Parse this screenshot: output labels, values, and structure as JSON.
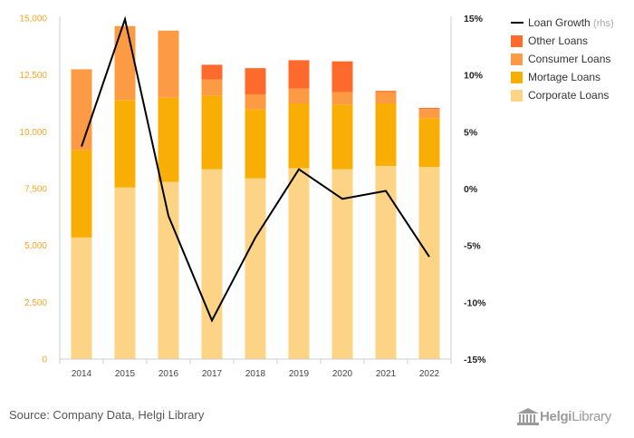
{
  "chart_data": {
    "type": "bar",
    "stacked": true,
    "categories": [
      "2014",
      "2015",
      "2016",
      "2017",
      "2018",
      "2019",
      "2020",
      "2021",
      "2022"
    ],
    "series": [
      {
        "name": "Corporate Loans",
        "color": "#fdd485",
        "values": [
          5350,
          7550,
          7800,
          8350,
          7950,
          8400,
          8350,
          8500,
          8450
        ]
      },
      {
        "name": "Mortage Loans",
        "color": "#f9ae05",
        "values": [
          3850,
          3850,
          3700,
          3250,
          3050,
          2850,
          2850,
          2750,
          2150
        ]
      },
      {
        "name": "Consumer Loans",
        "color": "#fd9b45",
        "values": [
          3550,
          3250,
          2950,
          700,
          650,
          650,
          550,
          500,
          400
        ]
      },
      {
        "name": "Other Loans",
        "color": "#fd6a2b",
        "values": [
          0,
          0,
          0,
          650,
          1150,
          1250,
          1350,
          50,
          50
        ]
      }
    ],
    "line_series": {
      "name": "Loan Growth",
      "suffix": "(rhs)",
      "color": "#000000",
      "axis": "right",
      "values": [
        3.7,
        14.9,
        -2.4,
        -11.6,
        -4.3,
        1.7,
        -0.9,
        -0.2,
        -6.0
      ]
    },
    "y_left": {
      "min": 0,
      "max": 15000,
      "ticks": [
        "0",
        "2,500",
        "5,000",
        "7,500",
        "10,000",
        "12,500",
        "15,000"
      ]
    },
    "y_right": {
      "min": -15,
      "max": 15,
      "ticks": [
        "-15%",
        "-10%",
        "-5%",
        "0%",
        "5%",
        "10%",
        "15%"
      ]
    },
    "legend_position": "top-right",
    "grid": false,
    "source": "Source: Company Data, Helgi Library"
  },
  "brand": {
    "name_bold": "Helgi",
    "name_light": "Library"
  },
  "colors": {
    "axis": "#cccccc",
    "left_ticks": "#f5a623"
  }
}
